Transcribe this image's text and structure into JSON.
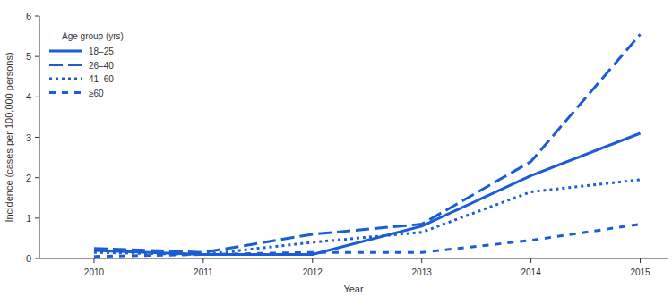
{
  "chart_data": {
    "type": "line",
    "x_label": "Year",
    "y_label": "Incidence (cases per 100,000 persons)",
    "legend_title": "Age group (yrs)",
    "x": [
      2010,
      2011,
      2012,
      2013,
      2014,
      2015
    ],
    "series": [
      {
        "name": "18–25",
        "color": "#1a5dd6",
        "line_style": "solid",
        "values": [
          0.2,
          0.1,
          0.1,
          0.8,
          2.05,
          3.1
        ]
      },
      {
        "name": "26–40",
        "color": "#1a5dd6",
        "line_style": "longdash",
        "values": [
          0.25,
          0.15,
          0.6,
          0.85,
          2.4,
          5.55
        ]
      },
      {
        "name": "41–60",
        "color": "#1a5dd6",
        "line_style": "dotted",
        "values": [
          0.15,
          0.1,
          0.4,
          0.65,
          1.65,
          1.95
        ]
      },
      {
        "name": "≥60",
        "color": "#1a5dd6",
        "line_style": "dashed",
        "values": [
          0.05,
          0.1,
          0.15,
          0.15,
          0.45,
          0.85
        ]
      }
    ],
    "xlim": [
      2009.5,
      2015.25
    ],
    "xticks": [
      2010,
      2011,
      2012,
      2013,
      2014,
      2015
    ],
    "ylim": [
      0,
      6
    ],
    "yticks": [
      0,
      1,
      2,
      3,
      4,
      5,
      6
    ],
    "grid": false,
    "legend": "upper left"
  }
}
